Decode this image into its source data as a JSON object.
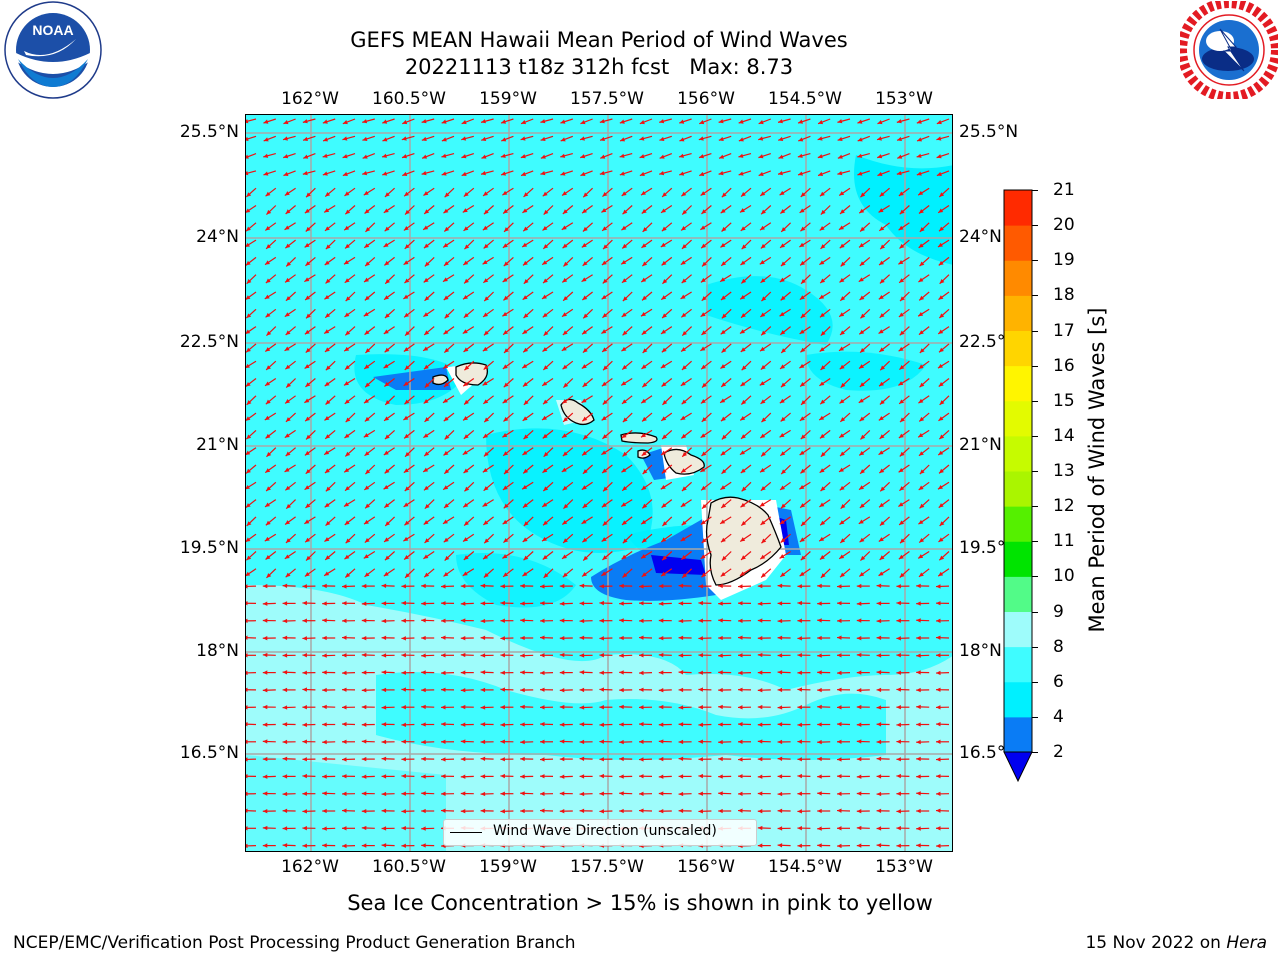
{
  "header": {
    "title_line1": "GEFS MEAN Hawaii Mean Period of Wind Waves",
    "title_line2": "20221113 t18z 312h fcst   Max: 8.73"
  },
  "logos": {
    "noaa_text": "NOAA",
    "noaa_ring_text": "NATIONAL OCEANIC AND ATMOSPHERIC ADMINISTRATION · U.S. DEPARTMENT OF COMMERCE",
    "nws_ring_text": "NATIONAL WEATHER SERVICE"
  },
  "axes": {
    "longitude_labels": [
      "162°W",
      "160.5°W",
      "159°W",
      "157.5°W",
      "156°W",
      "154.5°W",
      "153°W"
    ],
    "latitude_labels": [
      "25.5°N",
      "24°N",
      "22.5°N",
      "21°N",
      "19.5°N",
      "18°N",
      "16.5°N"
    ],
    "lon_range": [
      -163.0,
      -152.3
    ],
    "lat_range": [
      15.2,
      25.8
    ]
  },
  "colorbar": {
    "label": "Mean Period of Wind Waves [s]",
    "ticks": [
      "2",
      "4",
      "6",
      "8",
      "9",
      "10",
      "11",
      "12",
      "13",
      "14",
      "15",
      "16",
      "17",
      "18",
      "19",
      "20",
      "21"
    ],
    "colors": [
      "#0a7cf5",
      "#00f0ff",
      "#3ffcff",
      "#9efcfb",
      "#52fb88",
      "#00e400",
      "#55f000",
      "#aaf500",
      "#c6fb00",
      "#e3fb00",
      "#fff500",
      "#ffd500",
      "#ffb300",
      "#ff8a00",
      "#ff5a00",
      "#ff2a00",
      "#ff0000"
    ],
    "under_color": "#0000f0"
  },
  "legend": {
    "label": "Wind Wave Direction (unscaled)"
  },
  "notes": {
    "ice": "Sea Ice Concentration > 15% is shown in pink to yellow",
    "footer_left": "NCEP/EMC/Verification Post Processing Product Generation Branch",
    "footer_date": "15 Nov 2022 on ",
    "footer_host": "Hera"
  },
  "colors": {
    "ocean_main": "#3ffcff",
    "ocean_light": "#9efcfb",
    "ocean_mid": "#00f0ff",
    "low_period": "#0a7cf5",
    "very_low": "#0000f0",
    "land": "#efebdc",
    "arrow": "#ee1111",
    "grid": "#a8a8a8"
  }
}
